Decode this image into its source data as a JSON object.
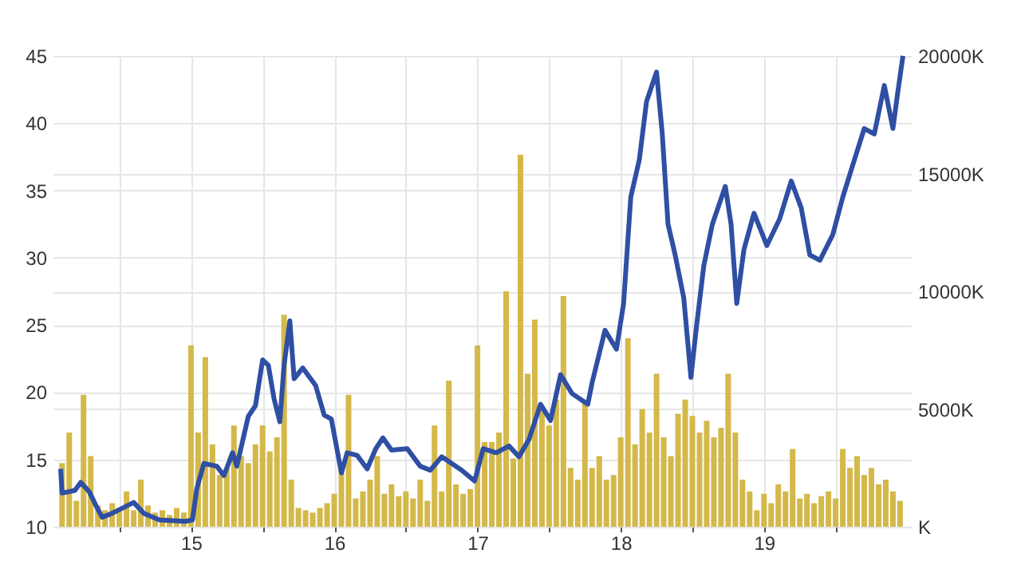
{
  "chart_data": {
    "type": "line",
    "xlim": [
      14.09,
      19.97
    ],
    "ylim": [
      10,
      45
    ],
    "y2lim": [
      0,
      20000
    ],
    "xticks": [
      {
        "value": 14.5,
        "label": null
      },
      15,
      {
        "value": 15.5,
        "label": null
      },
      16,
      {
        "value": 16.5,
        "label": null
      },
      17,
      {
        "value": 17.5,
        "label": null
      },
      18,
      {
        "value": 18.5,
        "label": null
      },
      19,
      {
        "value": 19.5,
        "label": null
      }
    ],
    "yticks": [
      10,
      15,
      20,
      25,
      30,
      35,
      40,
      45
    ],
    "y2ticks": [
      {
        "value": 0,
        "label": "K"
      },
      {
        "value": 5000,
        "label": "5000K"
      },
      {
        "value": 10000,
        "label": "10000K"
      },
      {
        "value": 15000,
        "label": "15000K"
      },
      {
        "value": 20000,
        "label": "20000K"
      }
    ],
    "grid": true,
    "series": [
      {
        "type": "bar",
        "axis": "y2",
        "color": "#d4b84a",
        "x": [
          14.1,
          14.15,
          14.2,
          14.25,
          14.3,
          14.35,
          14.4,
          14.45,
          14.5,
          14.55,
          14.6,
          14.65,
          14.7,
          14.75,
          14.8,
          14.85,
          14.9,
          14.95,
          15.0,
          15.05,
          15.1,
          15.15,
          15.2,
          15.25,
          15.3,
          15.35,
          15.4,
          15.45,
          15.5,
          15.55,
          15.6,
          15.65,
          15.7,
          15.75,
          15.8,
          15.85,
          15.9,
          15.95,
          16.0,
          16.05,
          16.1,
          16.15,
          16.2,
          16.25,
          16.3,
          16.35,
          16.4,
          16.45,
          16.5,
          16.55,
          16.6,
          16.65,
          16.7,
          16.75,
          16.8,
          16.85,
          16.9,
          16.95,
          17.0,
          17.05,
          17.1,
          17.15,
          17.2,
          17.25,
          17.3,
          17.35,
          17.4,
          17.45,
          17.5,
          17.55,
          17.6,
          17.65,
          17.7,
          17.75,
          17.8,
          17.85,
          17.9,
          17.95,
          18.0,
          18.05,
          18.1,
          18.15,
          18.2,
          18.25,
          18.3,
          18.35,
          18.4,
          18.45,
          18.5,
          18.55,
          18.6,
          18.65,
          18.7,
          18.75,
          18.8,
          18.85,
          18.9,
          18.95,
          19.0,
          19.05,
          19.1,
          19.15,
          19.2,
          19.25,
          19.3,
          19.35,
          19.4,
          19.45,
          19.5,
          19.55,
          19.6,
          19.65,
          19.7,
          19.75,
          19.8,
          19.85,
          19.9,
          19.95
        ],
        "values": [
          2700,
          4000,
          1100,
          5600,
          3000,
          900,
          700,
          1000,
          800,
          1500,
          700,
          2000,
          900,
          600,
          700,
          500,
          800,
          600,
          7700,
          4000,
          7200,
          3500,
          2200,
          2500,
          4300,
          3000,
          2700,
          3500,
          4300,
          3200,
          3800,
          9000,
          2000,
          800,
          700,
          600,
          800,
          1000,
          1400,
          2500,
          5600,
          1200,
          1500,
          2000,
          3000,
          1400,
          1800,
          1300,
          1500,
          1200,
          2000,
          1100,
          4300,
          1500,
          6200,
          1800,
          1400,
          1600,
          7700,
          3600,
          3600,
          4000,
          10000,
          2900,
          15800,
          6500,
          8800,
          5000,
          4300,
          5400,
          9800,
          2500,
          2000,
          5400,
          2500,
          3000,
          2000,
          2200,
          3800,
          8000,
          3500,
          5000,
          4000,
          6500,
          3800,
          3000,
          4800,
          5400,
          4700,
          4000,
          4500,
          3800,
          4200,
          6500,
          4000,
          2000,
          1500,
          700,
          1400,
          1000,
          1800,
          1500,
          3300,
          1200,
          1400,
          1000,
          1300,
          1500,
          1200,
          3300,
          2500,
          3000,
          2200,
          2500,
          1800,
          2000,
          1500,
          1100
        ]
      },
      {
        "axis": "y",
        "color": "#2e4fa3",
        "x": [
          14.09,
          14.1,
          14.19,
          14.23,
          14.29,
          14.34,
          14.38,
          14.45,
          14.6,
          14.67,
          14.78,
          14.96,
          15.01,
          15.04,
          15.09,
          15.18,
          15.23,
          15.29,
          15.32,
          15.4,
          15.45,
          15.5,
          15.54,
          15.58,
          15.62,
          15.65,
          15.69,
          15.72,
          15.78,
          15.87,
          15.93,
          15.98,
          16.05,
          16.09,
          16.16,
          16.23,
          16.29,
          16.34,
          16.4,
          16.51,
          16.6,
          16.67,
          16.75,
          16.82,
          16.89,
          16.98,
          17.04,
          17.13,
          17.22,
          17.29,
          17.36,
          17.44,
          17.51,
          17.58,
          17.66,
          17.77,
          17.8,
          17.89,
          17.97,
          18.02,
          18.07,
          18.13,
          18.18,
          18.25,
          18.29,
          18.33,
          18.38,
          18.44,
          18.49,
          18.53,
          18.58,
          18.64,
          18.73,
          18.77,
          18.81,
          18.86,
          18.93,
          19.02,
          19.11,
          19.19,
          19.26,
          19.32,
          19.39,
          19.48,
          19.55,
          19.62,
          19.7,
          19.77,
          19.84,
          19.9,
          19.93,
          19.97
        ],
        "values": [
          14.3,
          12.5,
          12.7,
          13.3,
          12.6,
          11.5,
          10.7,
          11.0,
          11.8,
          11.0,
          10.5,
          10.4,
          10.5,
          12.8,
          14.7,
          14.5,
          13.8,
          15.5,
          14.5,
          18.2,
          19.0,
          22.4,
          22.0,
          19.5,
          17.8,
          22.0,
          25.3,
          21.0,
          21.8,
          20.5,
          18.3,
          18.0,
          14.0,
          15.5,
          15.3,
          14.3,
          15.8,
          16.6,
          15.7,
          15.8,
          14.5,
          14.2,
          15.2,
          14.7,
          14.2,
          13.4,
          15.8,
          15.5,
          16.0,
          15.2,
          16.5,
          19.1,
          17.9,
          21.3,
          19.9,
          19.1,
          20.7,
          24.6,
          23.2,
          26.6,
          34.5,
          37.3,
          41.6,
          43.8,
          39.2,
          32.5,
          30.2,
          27.0,
          21.1,
          25.0,
          29.4,
          32.5,
          35.3,
          32.5,
          26.6,
          30.6,
          33.3,
          30.9,
          32.9,
          35.7,
          33.7,
          30.2,
          29.8,
          31.7,
          34.5,
          36.9,
          39.6,
          39.2,
          42.8,
          39.6,
          42.0,
          45
        ]
      }
    ]
  }
}
